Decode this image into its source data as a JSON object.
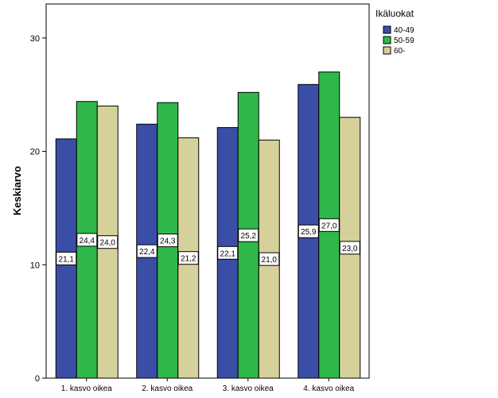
{
  "chart_data": {
    "type": "bar",
    "categories": [
      "1. kasvo oikea",
      "2. kasvo oikea",
      "3. kasvo oikea",
      "4. kasvo oikea"
    ],
    "series": [
      {
        "name": "40-49",
        "values": [
          21.1,
          22.4,
          22.1,
          25.9
        ],
        "labels": [
          "21,1",
          "22,4",
          "22,1",
          "25,9"
        ],
        "color": "#3a4ea6"
      },
      {
        "name": "50-59",
        "values": [
          24.4,
          24.3,
          25.2,
          27.0
        ],
        "labels": [
          "24,4",
          "24,3",
          "25,2",
          "27,0"
        ],
        "color": "#2fb84a"
      },
      {
        "name": "60-",
        "values": [
          24.0,
          21.2,
          21.0,
          23.0
        ],
        "labels": [
          "24,0",
          "21,2",
          "21,0",
          "23,0"
        ],
        "color": "#d6d19a"
      }
    ],
    "ylabel": "Keskiarvo",
    "ylim": [
      0,
      33
    ],
    "yticks": [
      0,
      10,
      20,
      30
    ],
    "legend_title": "Ikäluokat",
    "legend_position": "top-right",
    "grid": false
  }
}
